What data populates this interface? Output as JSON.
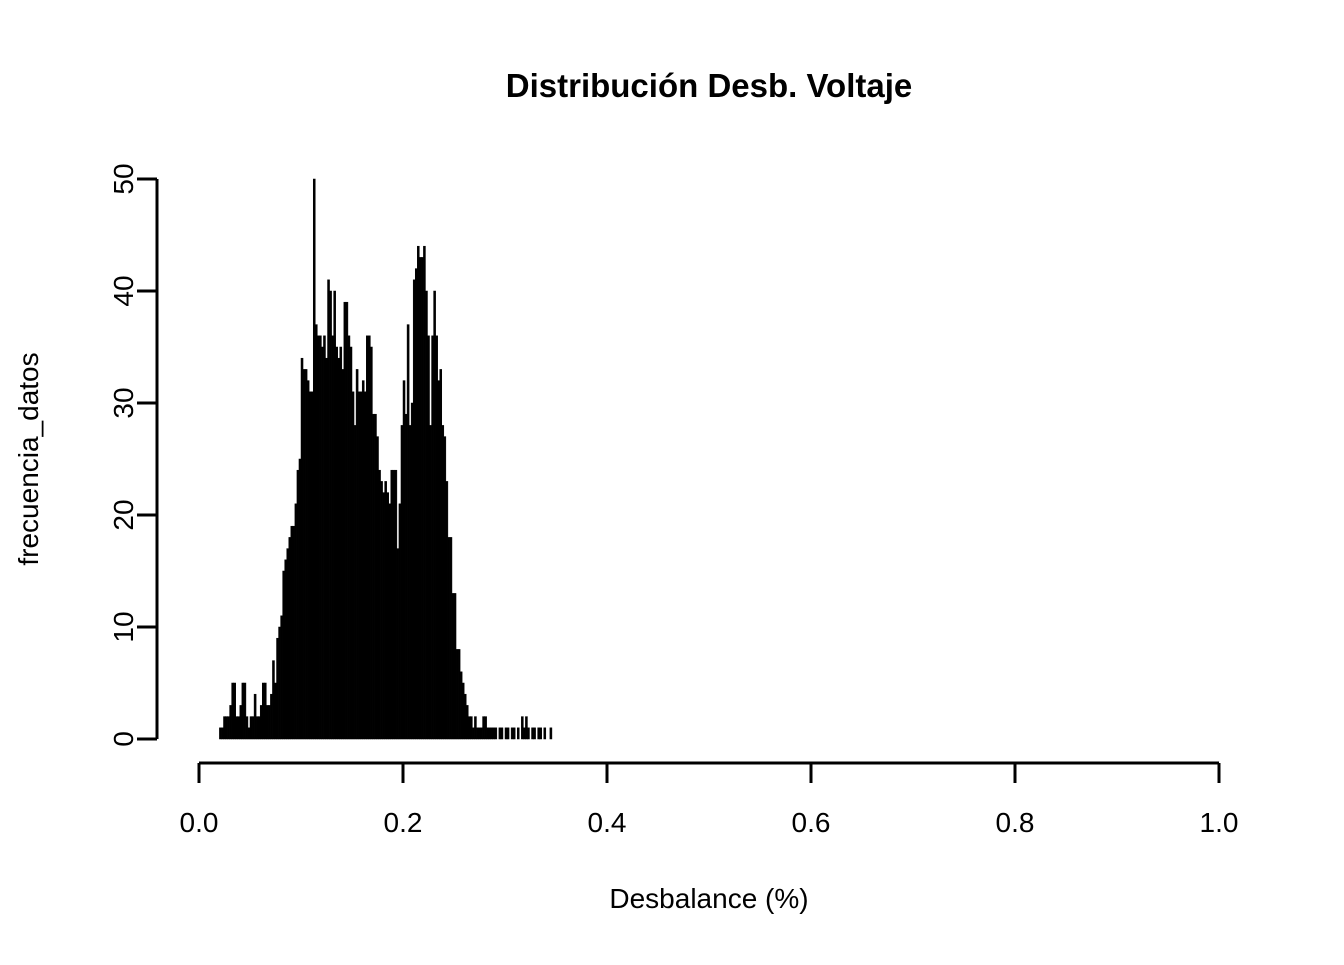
{
  "page": {
    "background": "#ffffff",
    "foreground": "#000000"
  },
  "chart_data": {
    "type": "bar",
    "subtype": "histogram",
    "title": "Distribución Desb. Voltaje",
    "xlabel": "Desbalance (%)",
    "ylabel": "frecuencia_datos",
    "xlim": [
      0.0,
      1.0
    ],
    "ylim": [
      0,
      50
    ],
    "x_ticks": [
      0.0,
      0.2,
      0.4,
      0.6,
      0.8,
      1.0
    ],
    "x_tick_labels": [
      "0.0",
      "0.2",
      "0.4",
      "0.6",
      "0.8",
      "1.0"
    ],
    "y_ticks": [
      0,
      10,
      20,
      30,
      40,
      50
    ],
    "y_tick_labels": [
      "0",
      "10",
      "20",
      "30",
      "40",
      "50"
    ],
    "grid": false,
    "legend": "none",
    "bar_color": "#000000",
    "bin_start": 0.02,
    "bin_width": 0.002,
    "frequencies": [
      1,
      1,
      2,
      2,
      2,
      3,
      5,
      5,
      2,
      2,
      3,
      5,
      5,
      2,
      1,
      2,
      2,
      4,
      2,
      2,
      3,
      5,
      5,
      3,
      3,
      4,
      7,
      5,
      9,
      10,
      11,
      15,
      16,
      17,
      18,
      19,
      19,
      21,
      24,
      25,
      34,
      33,
      33,
      32,
      31,
      31,
      50,
      37,
      36,
      36,
      35,
      36,
      34,
      41,
      40,
      36,
      40,
      35,
      34,
      35,
      33,
      39,
      39,
      36,
      35,
      31,
      28,
      33,
      31,
      31,
      32,
      31,
      36,
      36,
      35,
      29,
      29,
      27,
      24,
      23,
      22,
      23,
      22,
      21,
      24,
      24,
      24,
      17,
      21,
      28,
      32,
      29,
      37,
      28,
      30,
      41,
      42,
      44,
      43,
      43,
      44,
      40,
      36,
      28,
      36,
      40,
      36,
      32,
      33,
      28,
      27,
      23,
      18,
      18,
      13,
      13,
      8,
      8,
      6,
      5,
      4,
      3,
      2,
      2,
      1,
      2,
      1,
      1,
      1,
      2,
      2,
      1,
      1,
      1,
      1,
      1,
      0,
      1,
      1,
      0,
      1,
      1,
      0,
      1,
      1,
      0,
      1,
      0,
      2,
      1,
      2,
      1,
      0,
      1,
      1,
      0,
      1,
      1,
      0,
      1,
      0,
      0,
      1
    ]
  }
}
